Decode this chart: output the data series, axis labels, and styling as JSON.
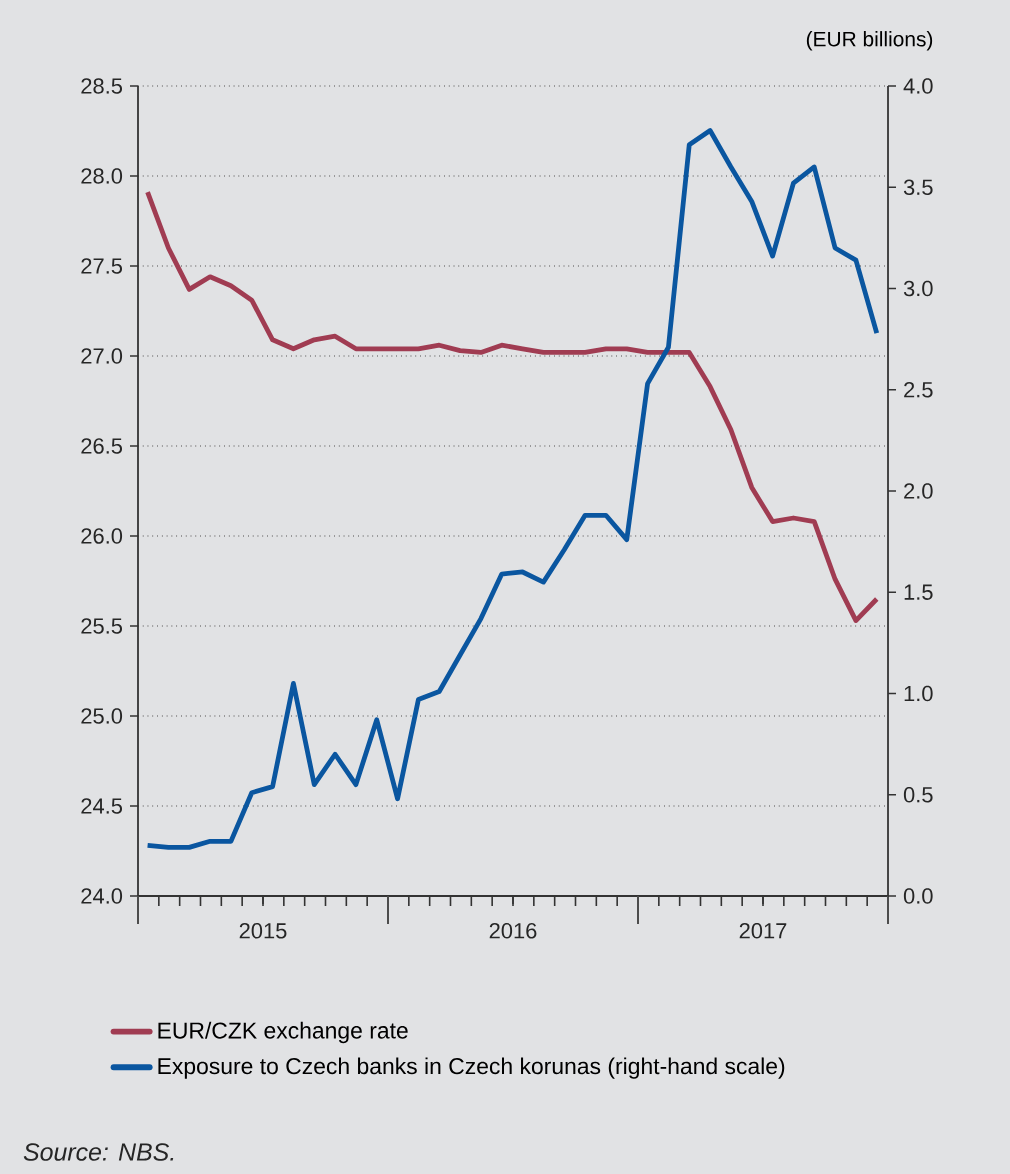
{
  "chart_data": {
    "type": "line",
    "y2label": "(EUR billions)",
    "x": [
      "2015-01-15",
      "2015-02-15",
      "2015-03-15",
      "2015-04-15",
      "2015-05-15",
      "2015-06-15",
      "2015-07-15",
      "2015-08-15",
      "2015-09-15",
      "2015-10-15",
      "2015-11-15",
      "2015-12-15",
      "2016-01-15",
      "2016-02-15",
      "2016-03-15",
      "2016-04-15",
      "2016-05-15",
      "2016-06-15",
      "2016-07-15",
      "2016-08-15",
      "2016-09-15",
      "2016-10-15",
      "2016-11-15",
      "2016-12-15",
      "2017-01-15",
      "2017-02-15",
      "2017-03-15",
      "2017-04-15",
      "2017-05-15",
      "2017-06-15",
      "2017-07-15",
      "2017-08-15",
      "2017-09-15",
      "2017-10-15",
      "2017-11-15",
      "2017-12-15"
    ],
    "series": [
      {
        "name": "EUR/CZK exchange rate",
        "color": "#a03c52",
        "values": [
          27.91,
          27.6,
          27.37,
          27.44,
          27.39,
          27.31,
          27.09,
          27.04,
          27.09,
          27.11,
          27.04,
          27.04,
          27.04,
          27.04,
          27.06,
          27.03,
          27.02,
          27.06,
          27.04,
          27.02,
          27.02,
          27.02,
          27.04,
          27.04,
          27.02,
          27.02,
          27.02,
          26.83,
          26.59,
          26.27,
          26.08,
          26.1,
          26.08,
          25.76,
          25.53,
          25.65
        ]
      },
      {
        "name": "Exposure to Czech banks in Czech korunas (right-hand scale)",
        "color": "#0a56a0",
        "axis": "y2",
        "values": [
          0.25,
          0.24,
          0.24,
          0.27,
          0.27,
          0.51,
          0.54,
          1.05,
          0.55,
          0.7,
          0.55,
          0.87,
          0.48,
          0.97,
          1.01,
          1.19,
          1.37,
          1.59,
          1.6,
          1.55,
          1.71,
          1.88,
          1.88,
          1.76,
          2.53,
          2.71,
          3.71,
          3.78,
          3.6,
          3.43,
          3.16,
          3.52,
          3.6,
          3.2,
          3.14,
          2.78
        ]
      }
    ],
    "xlim": [
      "2015-01",
      "2018-01"
    ],
    "xticks": [
      {
        "value": "2015-01",
        "label": null
      },
      {
        "value": "2015-07",
        "label": "2015"
      },
      {
        "value": "2016-01",
        "label": null
      },
      {
        "value": "2016-07",
        "label": "2016"
      },
      {
        "value": "2017-01",
        "label": null
      },
      {
        "value": "2017-07",
        "label": "2017"
      },
      {
        "value": "2018-01",
        "label": null
      }
    ],
    "ylim": [
      24.0,
      28.5
    ],
    "yticks": [
      {
        "value": 24.0,
        "label": "24.0"
      },
      24.5,
      {
        "value": 25.0,
        "label": "25.0"
      },
      25.5,
      {
        "value": 26.0,
        "label": "26.0"
      },
      26.5,
      {
        "value": 27.0,
        "label": "27.0"
      },
      27.5,
      {
        "value": 28.0,
        "label": "28.0"
      },
      28.5
    ],
    "y2lim": [
      0.0,
      4.0
    ],
    "y2ticks": [
      {
        "value": 0.0,
        "label": "0.0"
      },
      0.5,
      {
        "value": 1.0,
        "label": "1.0"
      },
      1.5,
      {
        "value": 2.0,
        "label": "2.0"
      },
      2.5,
      {
        "value": 3.0,
        "label": "3.0"
      },
      3.5,
      {
        "value": 4.0,
        "label": "4.0"
      }
    ],
    "grid": "y",
    "legend": "bottom",
    "line_style": "solid",
    "marker": "none",
    "annotations": [
      "Source: *NBS.*"
    ]
  }
}
